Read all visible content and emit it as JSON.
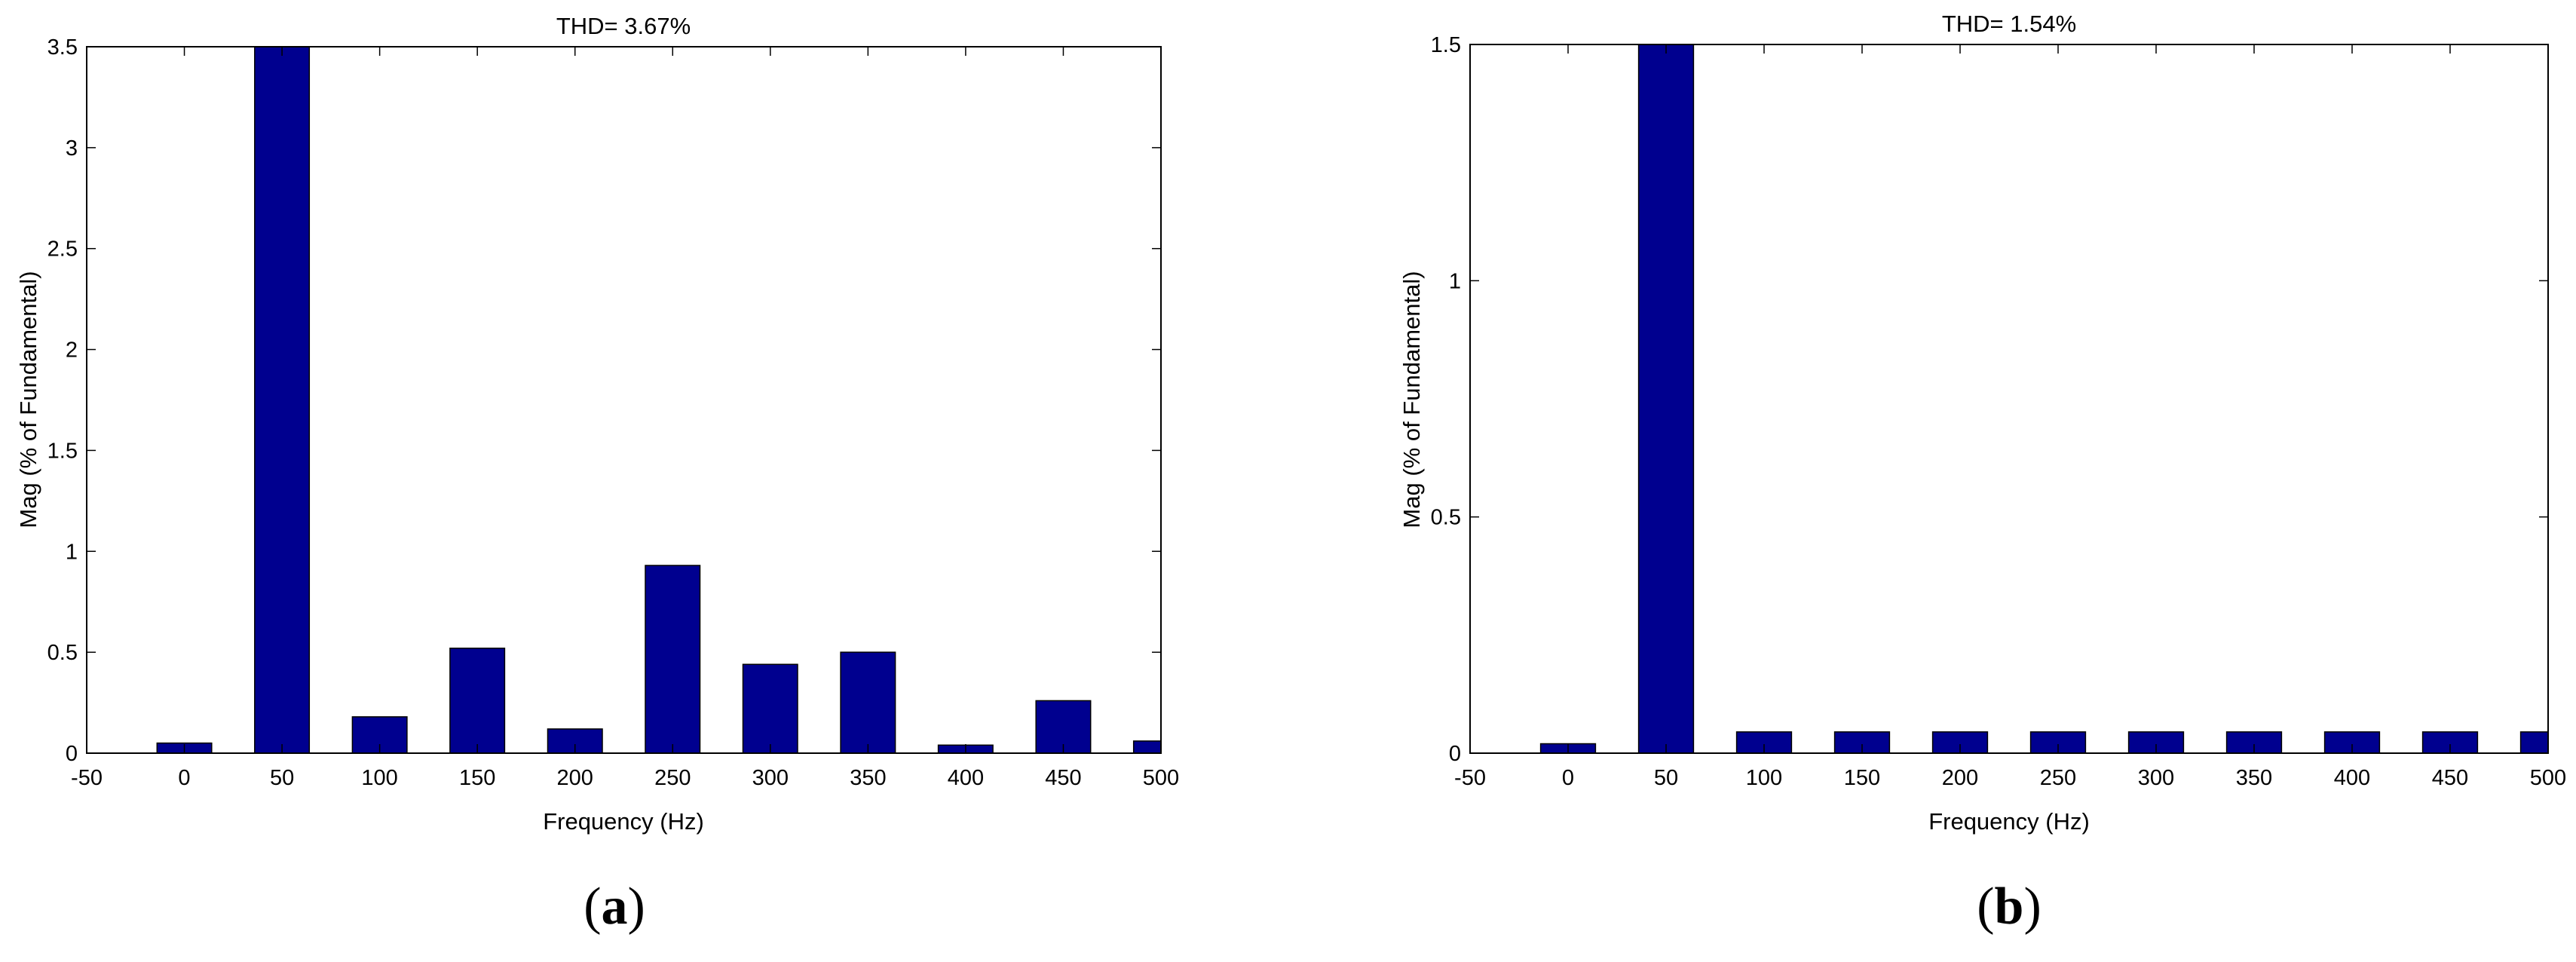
{
  "chart_data": [
    {
      "type": "bar",
      "panel_label": "a",
      "title": "THD= 3.67%",
      "xlabel": "Frequency (Hz)",
      "ylabel": "Mag (% of Fundamental)",
      "xlim": [
        -50,
        500
      ],
      "ylim": [
        0,
        3.5
      ],
      "xticks": [
        "-50",
        "0",
        "50",
        "100",
        "150",
        "200",
        "250",
        "300",
        "350",
        "400",
        "450",
        "500"
      ],
      "yticks": [
        "0",
        "0.5",
        "1",
        "1.5",
        "2",
        "2.5",
        "3",
        "3.5"
      ],
      "bar_color": "#00008F",
      "x": [
        0,
        50,
        100,
        150,
        200,
        250,
        300,
        350,
        400,
        450,
        500
      ],
      "values": [
        0.05,
        3.5,
        0.18,
        0.52,
        0.12,
        0.93,
        0.44,
        0.5,
        0.04,
        0.26,
        0.06
      ]
    },
    {
      "type": "bar",
      "panel_label": "b",
      "title": "THD= 1.54%",
      "xlabel": "Frequency (Hz)",
      "ylabel": "Mag (% of Fundamental)",
      "xlim": [
        -50,
        500
      ],
      "ylim": [
        0,
        1.5
      ],
      "xticks": [
        "-50",
        "0",
        "50",
        "100",
        "150",
        "200",
        "250",
        "300",
        "350",
        "400",
        "450",
        "500"
      ],
      "yticks": [
        "0",
        "0.5",
        "1",
        "1.5"
      ],
      "bar_color": "#00008F",
      "x": [
        0,
        50,
        100,
        150,
        200,
        250,
        300,
        350,
        400,
        450,
        500
      ],
      "values": [
        0.02,
        1.5,
        0.045,
        0.045,
        0.045,
        0.045,
        0.045,
        0.045,
        0.045,
        0.045,
        0.045
      ]
    }
  ]
}
